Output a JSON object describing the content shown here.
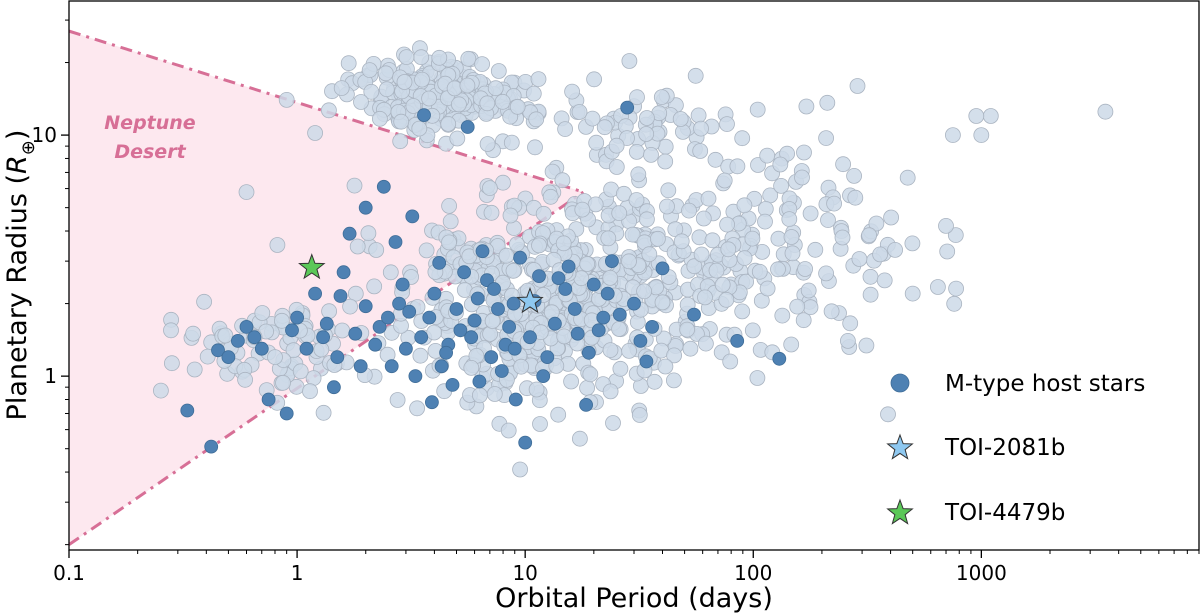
{
  "chart_data": {
    "type": "scatter",
    "xlabel": "Orbital Period (days)",
    "ylabel_main": "Planetary Radius (",
    "ylabel_sym": "R",
    "ylabel_sub": "⊕",
    "ylabel_close": ")",
    "x_scale": "log",
    "y_scale": "log",
    "xlim": [
      0.1,
      9000
    ],
    "ylim": [
      0.19,
      36
    ],
    "x_ticks": [
      {
        "value": 0.1,
        "label": "0.1"
      },
      {
        "value": 1,
        "label": "1"
      },
      {
        "value": 10,
        "label": "10"
      },
      {
        "value": 100,
        "label": "100"
      },
      {
        "value": 1000,
        "label": "1000"
      }
    ],
    "y_ticks": [
      {
        "value": 1,
        "label": "1"
      },
      {
        "value": 10,
        "label": "10"
      }
    ],
    "grid": false,
    "legend_position": "lower-right",
    "legend": [
      {
        "label": "M-type host stars",
        "marker": "circle",
        "color": "#4e81b3"
      },
      {
        "label": "TOI-2081b",
        "marker": "star",
        "color": "#8ec8f0"
      },
      {
        "label": "TOI-4479b",
        "marker": "star",
        "color": "#5bc858"
      }
    ],
    "desert": {
      "label_line1": "Neptune",
      "label_line2": "Desert",
      "fill": "#fde8ef",
      "line_color": "#d76f96",
      "upper_boundary": [
        [
          0.1,
          27
        ],
        [
          18,
          5.8
        ]
      ],
      "lower_boundary": [
        [
          0.1,
          0.2
        ],
        [
          18,
          5.8
        ]
      ]
    },
    "background_population": {
      "color": "#cdd9e8",
      "edge": "#aab4c1",
      "count": 1200,
      "components": [
        {
          "weight": 0.22,
          "logP_mean": 0.62,
          "logP_sd": 0.16,
          "logR_mean": 1.17,
          "logR_sd": 0.07
        },
        {
          "weight": 0.07,
          "logP_mean": 1.35,
          "logP_sd": 0.45,
          "logR_mean": 1.06,
          "logR_sd": 0.09
        },
        {
          "weight": 0.44,
          "logP_mean": 1.08,
          "logP_sd": 0.32,
          "logR_mean": 0.32,
          "logR_sd": 0.22
        },
        {
          "weight": 0.16,
          "logP_mean": 1.75,
          "logP_sd": 0.38,
          "logR_mean": 0.52,
          "logR_sd": 0.22
        },
        {
          "weight": 0.07,
          "logP_mean": -0.1,
          "logP_sd": 0.22,
          "logR_mean": 0.12,
          "logR_sd": 0.1
        },
        {
          "weight": 0.04,
          "logP_mean": 2.3,
          "logP_sd": 0.35,
          "logR_mean": 0.55,
          "logR_sd": 0.25
        }
      ],
      "extra_points": [
        [
          3500,
          12.5
        ],
        [
          1100,
          12
        ],
        [
          1000,
          10
        ],
        [
          950,
          12
        ],
        [
          750,
          10
        ],
        [
          700,
          4.2
        ],
        [
          500,
          2.2
        ],
        [
          360,
          3.2
        ],
        [
          280,
          5.5
        ],
        [
          260,
          1.4
        ],
        [
          9.5,
          0.41
        ],
        [
          0.35,
          1.5
        ],
        [
          0.28,
          1.55
        ],
        [
          0.6,
          5.8
        ],
        [
          0.82,
          3.5
        ],
        [
          0.9,
          14
        ],
        [
          1.2,
          10.2
        ],
        [
          0.8,
          1.2
        ]
      ]
    },
    "m_type_hosts": [
      [
        0.33,
        0.72
      ],
      [
        0.42,
        0.51
      ],
      [
        0.45,
        1.28
      ],
      [
        0.5,
        1.2
      ],
      [
        0.55,
        1.4
      ],
      [
        0.6,
        1.6
      ],
      [
        0.7,
        1.3
      ],
      [
        0.75,
        0.8
      ],
      [
        0.9,
        0.7
      ],
      [
        0.95,
        1.55
      ],
      [
        1.0,
        1.75
      ],
      [
        1.1,
        1.3
      ],
      [
        1.3,
        1.45
      ],
      [
        1.45,
        0.9
      ],
      [
        1.5,
        1.2
      ],
      [
        1.55,
        2.15
      ],
      [
        1.6,
        2.7
      ],
      [
        1.8,
        1.5
      ],
      [
        1.9,
        1.1
      ],
      [
        2.0,
        1.95
      ],
      [
        2.0,
        5.0
      ],
      [
        2.3,
        1.6
      ],
      [
        2.4,
        6.1
      ],
      [
        2.6,
        1.1
      ],
      [
        2.8,
        2.0
      ],
      [
        3.0,
        1.3
      ],
      [
        3.2,
        4.6
      ],
      [
        3.5,
        1.45
      ],
      [
        3.6,
        12.1
      ],
      [
        3.9,
        0.78
      ],
      [
        4.0,
        2.2
      ],
      [
        4.3,
        1.1
      ],
      [
        4.6,
        1.35
      ],
      [
        5.0,
        1.9
      ],
      [
        5.2,
        1.55
      ],
      [
        5.6,
        10.8
      ],
      [
        6.0,
        1.7
      ],
      [
        6.3,
        0.95
      ],
      [
        6.8,
        2.5
      ],
      [
        7.1,
        1.2
      ],
      [
        7.6,
        1.9
      ],
      [
        8.2,
        1.35
      ],
      [
        8.9,
        2.0
      ],
      [
        9.1,
        0.8
      ],
      [
        10.0,
        0.53
      ],
      [
        10.5,
        1.45
      ],
      [
        11.5,
        2.6
      ],
      [
        12.5,
        1.2
      ],
      [
        13.5,
        1.65
      ],
      [
        15.0,
        2.3
      ],
      [
        17.0,
        1.5
      ],
      [
        18.5,
        0.76
      ],
      [
        20.0,
        2.4
      ],
      [
        22.0,
        1.75
      ],
      [
        24.0,
        3.0
      ],
      [
        28.0,
        13.0
      ],
      [
        30.0,
        2.0
      ],
      [
        32.0,
        1.4
      ],
      [
        34.0,
        1.15
      ],
      [
        40.0,
        2.8
      ],
      [
        55.0,
        1.8
      ],
      [
        85.0,
        1.4
      ],
      [
        130.0,
        1.18
      ],
      [
        3.3,
        1.0
      ],
      [
        4.8,
        0.92
      ],
      [
        2.7,
        3.6
      ],
      [
        6.5,
        3.3
      ],
      [
        9.5,
        3.1
      ],
      [
        1.2,
        2.2
      ],
      [
        1.7,
        3.9
      ],
      [
        12.0,
        1.0
      ],
      [
        15.5,
        2.85
      ],
      [
        19.0,
        1.25
      ],
      [
        26.0,
        1.8
      ],
      [
        7.9,
        1.05
      ],
      [
        5.4,
        2.7
      ],
      [
        3.8,
        1.75
      ],
      [
        2.2,
        1.35
      ],
      [
        1.35,
        1.65
      ],
      [
        0.65,
        1.45
      ],
      [
        16.5,
        1.9
      ],
      [
        23.0,
        2.2
      ],
      [
        36.0,
        1.6
      ],
      [
        11.0,
        2.05
      ],
      [
        8.5,
        1.6
      ],
      [
        4.5,
        1.25
      ],
      [
        2.9,
        2.4
      ],
      [
        6.2,
        2.1
      ],
      [
        3.1,
        1.85
      ],
      [
        14.0,
        2.55
      ],
      [
        21.0,
        1.55
      ],
      [
        9.0,
        1.3
      ],
      [
        4.2,
        2.95
      ],
      [
        5.8,
        1.45
      ],
      [
        7.3,
        2.3
      ],
      [
        2.5,
        1.75
      ]
    ],
    "highlighted": [
      {
        "name": "TOI-2081b",
        "period": 10.5,
        "radius": 2.04,
        "color": "#8ec8f0"
      },
      {
        "name": "TOI-4479b",
        "period": 1.16,
        "radius": 2.82,
        "color": "#5bc858"
      }
    ]
  }
}
